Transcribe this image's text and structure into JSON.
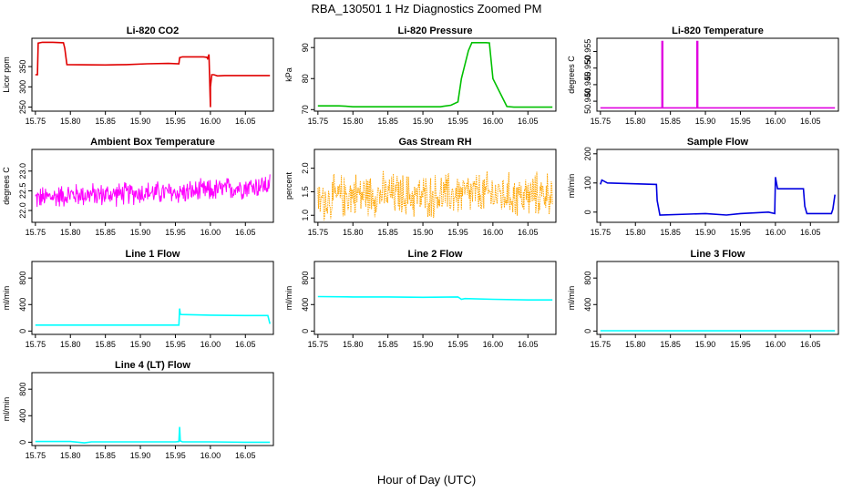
{
  "title": "RBA_130501  1 Hz Diagnostics Zoomed PM",
  "xlabel": "Hour of Day (UTC)",
  "chart_data": [
    {
      "type": "line",
      "title": "Li-820 CO2",
      "ylabel": "Licor ppm",
      "color": "#e00000",
      "xlim": [
        15.745,
        16.09
      ],
      "xticks": [
        "15.75",
        "15.80",
        "15.85",
        "15.90",
        "15.95",
        "16.00",
        "16.05"
      ],
      "ylim": [
        240,
        420
      ],
      "yticks": [
        250,
        300,
        350
      ],
      "x": [
        15.75,
        15.753,
        15.754,
        15.76,
        15.775,
        15.79,
        15.792,
        15.795,
        15.85,
        15.88,
        15.91,
        15.94,
        15.955,
        15.956,
        15.96,
        15.99,
        15.995,
        15.996,
        15.998,
        16.0,
        16.0,
        16.002,
        16.005,
        16.01,
        16.02,
        16.05,
        16.085
      ],
      "y": [
        330,
        330,
        408,
        410,
        410,
        409,
        395,
        355,
        354,
        355,
        357,
        358,
        357,
        372,
        374,
        374,
        373,
        370,
        380,
        250,
        300,
        330,
        330,
        327,
        328,
        328,
        328
      ]
    },
    {
      "type": "line",
      "title": "Li-820 Pressure",
      "ylabel": "kPa",
      "color": "#00c000",
      "xlim": [
        15.745,
        16.09
      ],
      "xticks": [
        "15.75",
        "15.80",
        "15.85",
        "15.90",
        "15.95",
        "16.00",
        "16.05"
      ],
      "ylim": [
        69.5,
        93
      ],
      "yticks": [
        70,
        80,
        90
      ],
      "x": [
        15.75,
        15.78,
        15.79,
        15.8,
        15.85,
        15.9,
        15.925,
        15.93,
        15.93,
        15.94,
        15.95,
        15.955,
        15.965,
        15.97,
        15.975,
        15.99,
        15.995,
        16.0,
        16.02,
        16.03,
        16.05,
        16.085
      ],
      "y": [
        71.2,
        71.2,
        71.1,
        70.9,
        70.9,
        70.9,
        70.9,
        71.1,
        71.1,
        71.4,
        72.5,
        80,
        89,
        91.6,
        91.6,
        91.6,
        91.5,
        80,
        71,
        70.8,
        70.8,
        70.8
      ]
    },
    {
      "type": "line",
      "title": "Li-820 Temperature",
      "ylabel": "degrees C",
      "color": "#e000e0",
      "xlim": [
        15.745,
        16.09
      ],
      "xticks": [
        "15.75",
        "15.80",
        "15.85",
        "15.90",
        "15.95",
        "16.00",
        "16.05"
      ],
      "ylim": [
        50.937,
        50.959
      ],
      "yticks": [
        "50.940",
        "50.945",
        "50.950",
        "50.955"
      ],
      "x": [
        15.75,
        15.838,
        15.838,
        15.839,
        15.839,
        15.888,
        15.888,
        15.889,
        15.889,
        16.085
      ],
      "y": [
        50.938,
        50.938,
        50.958,
        50.958,
        50.938,
        50.938,
        50.958,
        50.958,
        50.938,
        50.938
      ]
    },
    {
      "type": "line",
      "title": "Ambient Box Temperature",
      "ylabel": "degrees C",
      "color": "#ff00ff",
      "xlim": [
        15.745,
        16.09
      ],
      "xticks": [
        "15.75",
        "15.80",
        "15.85",
        "15.90",
        "15.95",
        "16.00",
        "16.05"
      ],
      "ylim": [
        21.7,
        23.55
      ],
      "yticks": [
        "22.0",
        "22.5",
        "23.0"
      ],
      "x": [
        15.75,
        15.8,
        15.85,
        15.9,
        15.95,
        16.0,
        16.05,
        16.085
      ],
      "y": [
        22.3,
        22.4,
        22.4,
        22.45,
        22.45,
        22.5,
        22.6,
        22.65
      ],
      "noise": 0.35
    },
    {
      "type": "line",
      "title": "Gas Stream RH",
      "ylabel": "percent",
      "color": "#ffa500",
      "dotted": true,
      "xlim": [
        15.745,
        16.09
      ],
      "xticks": [
        "15.75",
        "15.80",
        "15.85",
        "15.90",
        "15.95",
        "16.00",
        "16.05"
      ],
      "ylim": [
        0.85,
        2.4
      ],
      "yticks": [
        "1.0",
        "1.5",
        "2.0"
      ],
      "x": [
        15.75,
        15.8,
        15.85,
        15.9,
        15.95,
        16.0,
        16.05,
        16.085
      ],
      "y": [
        1.3,
        1.45,
        1.45,
        1.4,
        1.45,
        1.45,
        1.4,
        1.5
      ],
      "noise": 0.55
    },
    {
      "type": "line",
      "title": "Sample Flow",
      "ylabel": "ml/min",
      "color": "#0000e0",
      "xlim": [
        15.745,
        16.09
      ],
      "xticks": [
        "15.75",
        "15.80",
        "15.85",
        "15.90",
        "15.95",
        "16.00",
        "16.05"
      ],
      "ylim": [
        -35,
        215
      ],
      "yticks": [
        0,
        100,
        200
      ],
      "x": [
        15.75,
        15.752,
        15.76,
        15.83,
        15.831,
        15.835,
        15.9,
        15.93,
        15.95,
        15.99,
        15.999,
        16.0,
        16.003,
        16.04,
        16.042,
        16.045,
        16.08,
        16.082,
        16.085
      ],
      "y": [
        95,
        110,
        100,
        95,
        40,
        -10,
        -5,
        -10,
        -5,
        0,
        -5,
        120,
        80,
        80,
        20,
        -5,
        -5,
        10,
        60
      ]
    },
    {
      "type": "line",
      "title": "Line 1 Flow",
      "ylabel": "ml/min",
      "color": "#00ffff",
      "xlim": [
        15.745,
        16.09
      ],
      "xticks": [
        "15.75",
        "15.80",
        "15.85",
        "15.90",
        "15.95",
        "16.00",
        "16.05"
      ],
      "ylim": [
        -50,
        1050
      ],
      "yticks": [
        0,
        400,
        800
      ],
      "x": [
        15.75,
        15.955,
        15.956,
        15.957,
        15.958,
        16.0,
        16.05,
        16.082,
        16.085
      ],
      "y": [
        90,
        90,
        340,
        260,
        250,
        240,
        235,
        235,
        110
      ]
    },
    {
      "type": "line",
      "title": "Line 2 Flow",
      "ylabel": "ml/min",
      "color": "#00ffff",
      "xlim": [
        15.745,
        16.09
      ],
      "xticks": [
        "15.75",
        "15.80",
        "15.85",
        "15.90",
        "15.95",
        "16.00",
        "16.05"
      ],
      "ylim": [
        -50,
        1050
      ],
      "yticks": [
        0,
        400,
        800
      ],
      "x": [
        15.75,
        15.8,
        15.85,
        15.9,
        15.95,
        15.955,
        15.96,
        16.0,
        16.05,
        16.085
      ],
      "y": [
        520,
        515,
        515,
        510,
        515,
        480,
        490,
        480,
        470,
        470
      ]
    },
    {
      "type": "line",
      "title": "Line 3 Flow",
      "ylabel": "ml/min",
      "color": "#00ffff",
      "xlim": [
        15.745,
        16.09
      ],
      "xticks": [
        "15.75",
        "15.80",
        "15.85",
        "15.90",
        "15.95",
        "16.00",
        "16.05"
      ],
      "ylim": [
        -50,
        1050
      ],
      "yticks": [
        0,
        400,
        800
      ],
      "x": [
        15.75,
        15.9,
        16.085
      ],
      "y": [
        5,
        3,
        3
      ]
    },
    {
      "type": "line",
      "title": "Line 4 (LT) Flow",
      "ylabel": "ml/min",
      "color": "#00ffff",
      "xlim": [
        15.745,
        16.09
      ],
      "xticks": [
        "15.75",
        "15.80",
        "15.85",
        "15.90",
        "15.95",
        "16.00",
        "16.05"
      ],
      "ylim": [
        -50,
        1050
      ],
      "yticks": [
        0,
        400,
        800
      ],
      "x": [
        15.75,
        15.8,
        15.82,
        15.83,
        15.95,
        15.955,
        15.956,
        15.957,
        15.96,
        16.0,
        16.05,
        16.085
      ],
      "y": [
        10,
        10,
        -10,
        5,
        5,
        10,
        230,
        20,
        5,
        5,
        0,
        0
      ]
    }
  ]
}
